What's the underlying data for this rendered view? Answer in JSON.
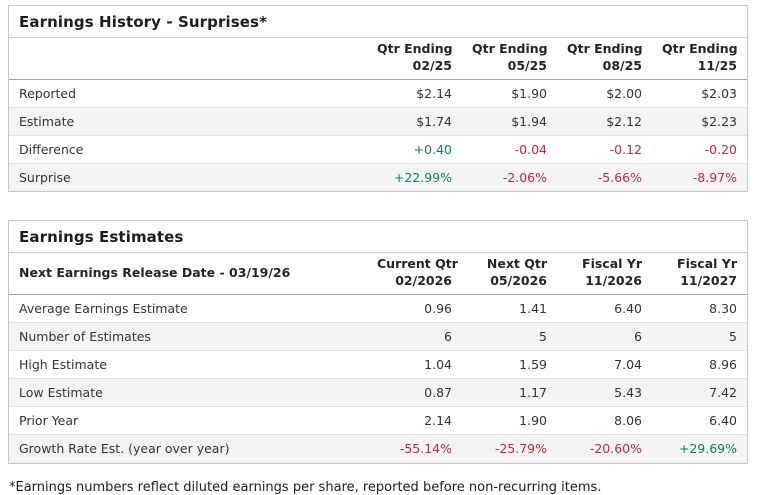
{
  "colors": {
    "positive": "#0e7f5f",
    "negative": "#c22a3c",
    "stripe": "#f4f4f4",
    "panel_border": "#c6c6c6"
  },
  "tables": [
    {
      "title": "Earnings History - Surprises*",
      "columns": [
        {
          "line1": "Qtr Ending",
          "line2": "02/25"
        },
        {
          "line1": "Qtr Ending",
          "line2": "05/25"
        },
        {
          "line1": "Qtr Ending",
          "line2": "08/25"
        },
        {
          "line1": "Qtr Ending",
          "line2": "11/25"
        }
      ],
      "rows": [
        {
          "label": "Reported",
          "values": [
            "$2.14",
            "$1.90",
            "$2.00",
            "$2.03"
          ]
        },
        {
          "label": "Estimate",
          "values": [
            "$1.74",
            "$1.94",
            "$2.12",
            "$2.23"
          ]
        },
        {
          "label": "Difference",
          "values": [
            "+0.40",
            "-0.04",
            "-0.12",
            "-0.20"
          ]
        },
        {
          "label": "Surprise",
          "values": [
            "+22.99%",
            "-2.06%",
            "-5.66%",
            "-8.97%"
          ]
        }
      ]
    },
    {
      "title": "Earnings Estimates",
      "corner_label": "Next Earnings Release Date - 03/19/26",
      "columns": [
        {
          "line1": "Current Qtr",
          "line2": "02/2026"
        },
        {
          "line1": "Next Qtr",
          "line2": "05/2026"
        },
        {
          "line1": "Fiscal Yr",
          "line2": "11/2026"
        },
        {
          "line1": "Fiscal Yr",
          "line2": "11/2027"
        }
      ],
      "rows": [
        {
          "label": "Average Earnings Estimate",
          "values": [
            "0.96",
            "1.41",
            "6.40",
            "8.30"
          ]
        },
        {
          "label": "Number of Estimates",
          "values": [
            "6",
            "5",
            "6",
            "5"
          ]
        },
        {
          "label": "High Estimate",
          "values": [
            "1.04",
            "1.59",
            "7.04",
            "8.96"
          ]
        },
        {
          "label": "Low Estimate",
          "values": [
            "0.87",
            "1.17",
            "5.43",
            "7.42"
          ]
        },
        {
          "label": "Prior Year",
          "values": [
            "2.14",
            "1.90",
            "8.06",
            "6.40"
          ]
        },
        {
          "label": "Growth Rate Est. (year over year)",
          "values": [
            "-55.14%",
            "-25.79%",
            "-20.60%",
            "+29.69%"
          ]
        }
      ]
    }
  ],
  "footnote": "*Earnings numbers reflect diluted earnings per share, reported before non-recurring items."
}
